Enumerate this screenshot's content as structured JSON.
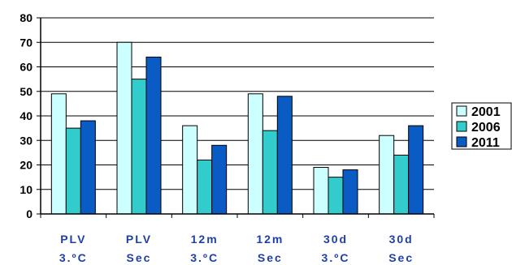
{
  "chart_data": {
    "type": "bar",
    "categories": [
      [
        "PLV",
        "3.ºC"
      ],
      [
        "PLV",
        "Sec"
      ],
      [
        "12m",
        "3.ºC"
      ],
      [
        "12m",
        "Sec"
      ],
      [
        "30d",
        "3.ºC"
      ],
      [
        "30d",
        "Sec"
      ]
    ],
    "series": [
      {
        "name": "2001",
        "color": "#ccffff",
        "values": [
          49,
          70,
          36,
          49,
          19,
          32
        ]
      },
      {
        "name": "2006",
        "color": "#33cccc",
        "values": [
          35,
          55,
          22,
          34,
          15,
          24
        ]
      },
      {
        "name": "2011",
        "color": "#0a5bc4",
        "values": [
          38,
          64,
          28,
          48,
          18,
          36
        ]
      }
    ],
    "yticks": [
      "0",
      "10",
      "20",
      "30",
      "40",
      "50",
      "60",
      "70",
      "80"
    ],
    "ylim": [
      0,
      80
    ],
    "grid": true,
    "legend_position": "right"
  }
}
